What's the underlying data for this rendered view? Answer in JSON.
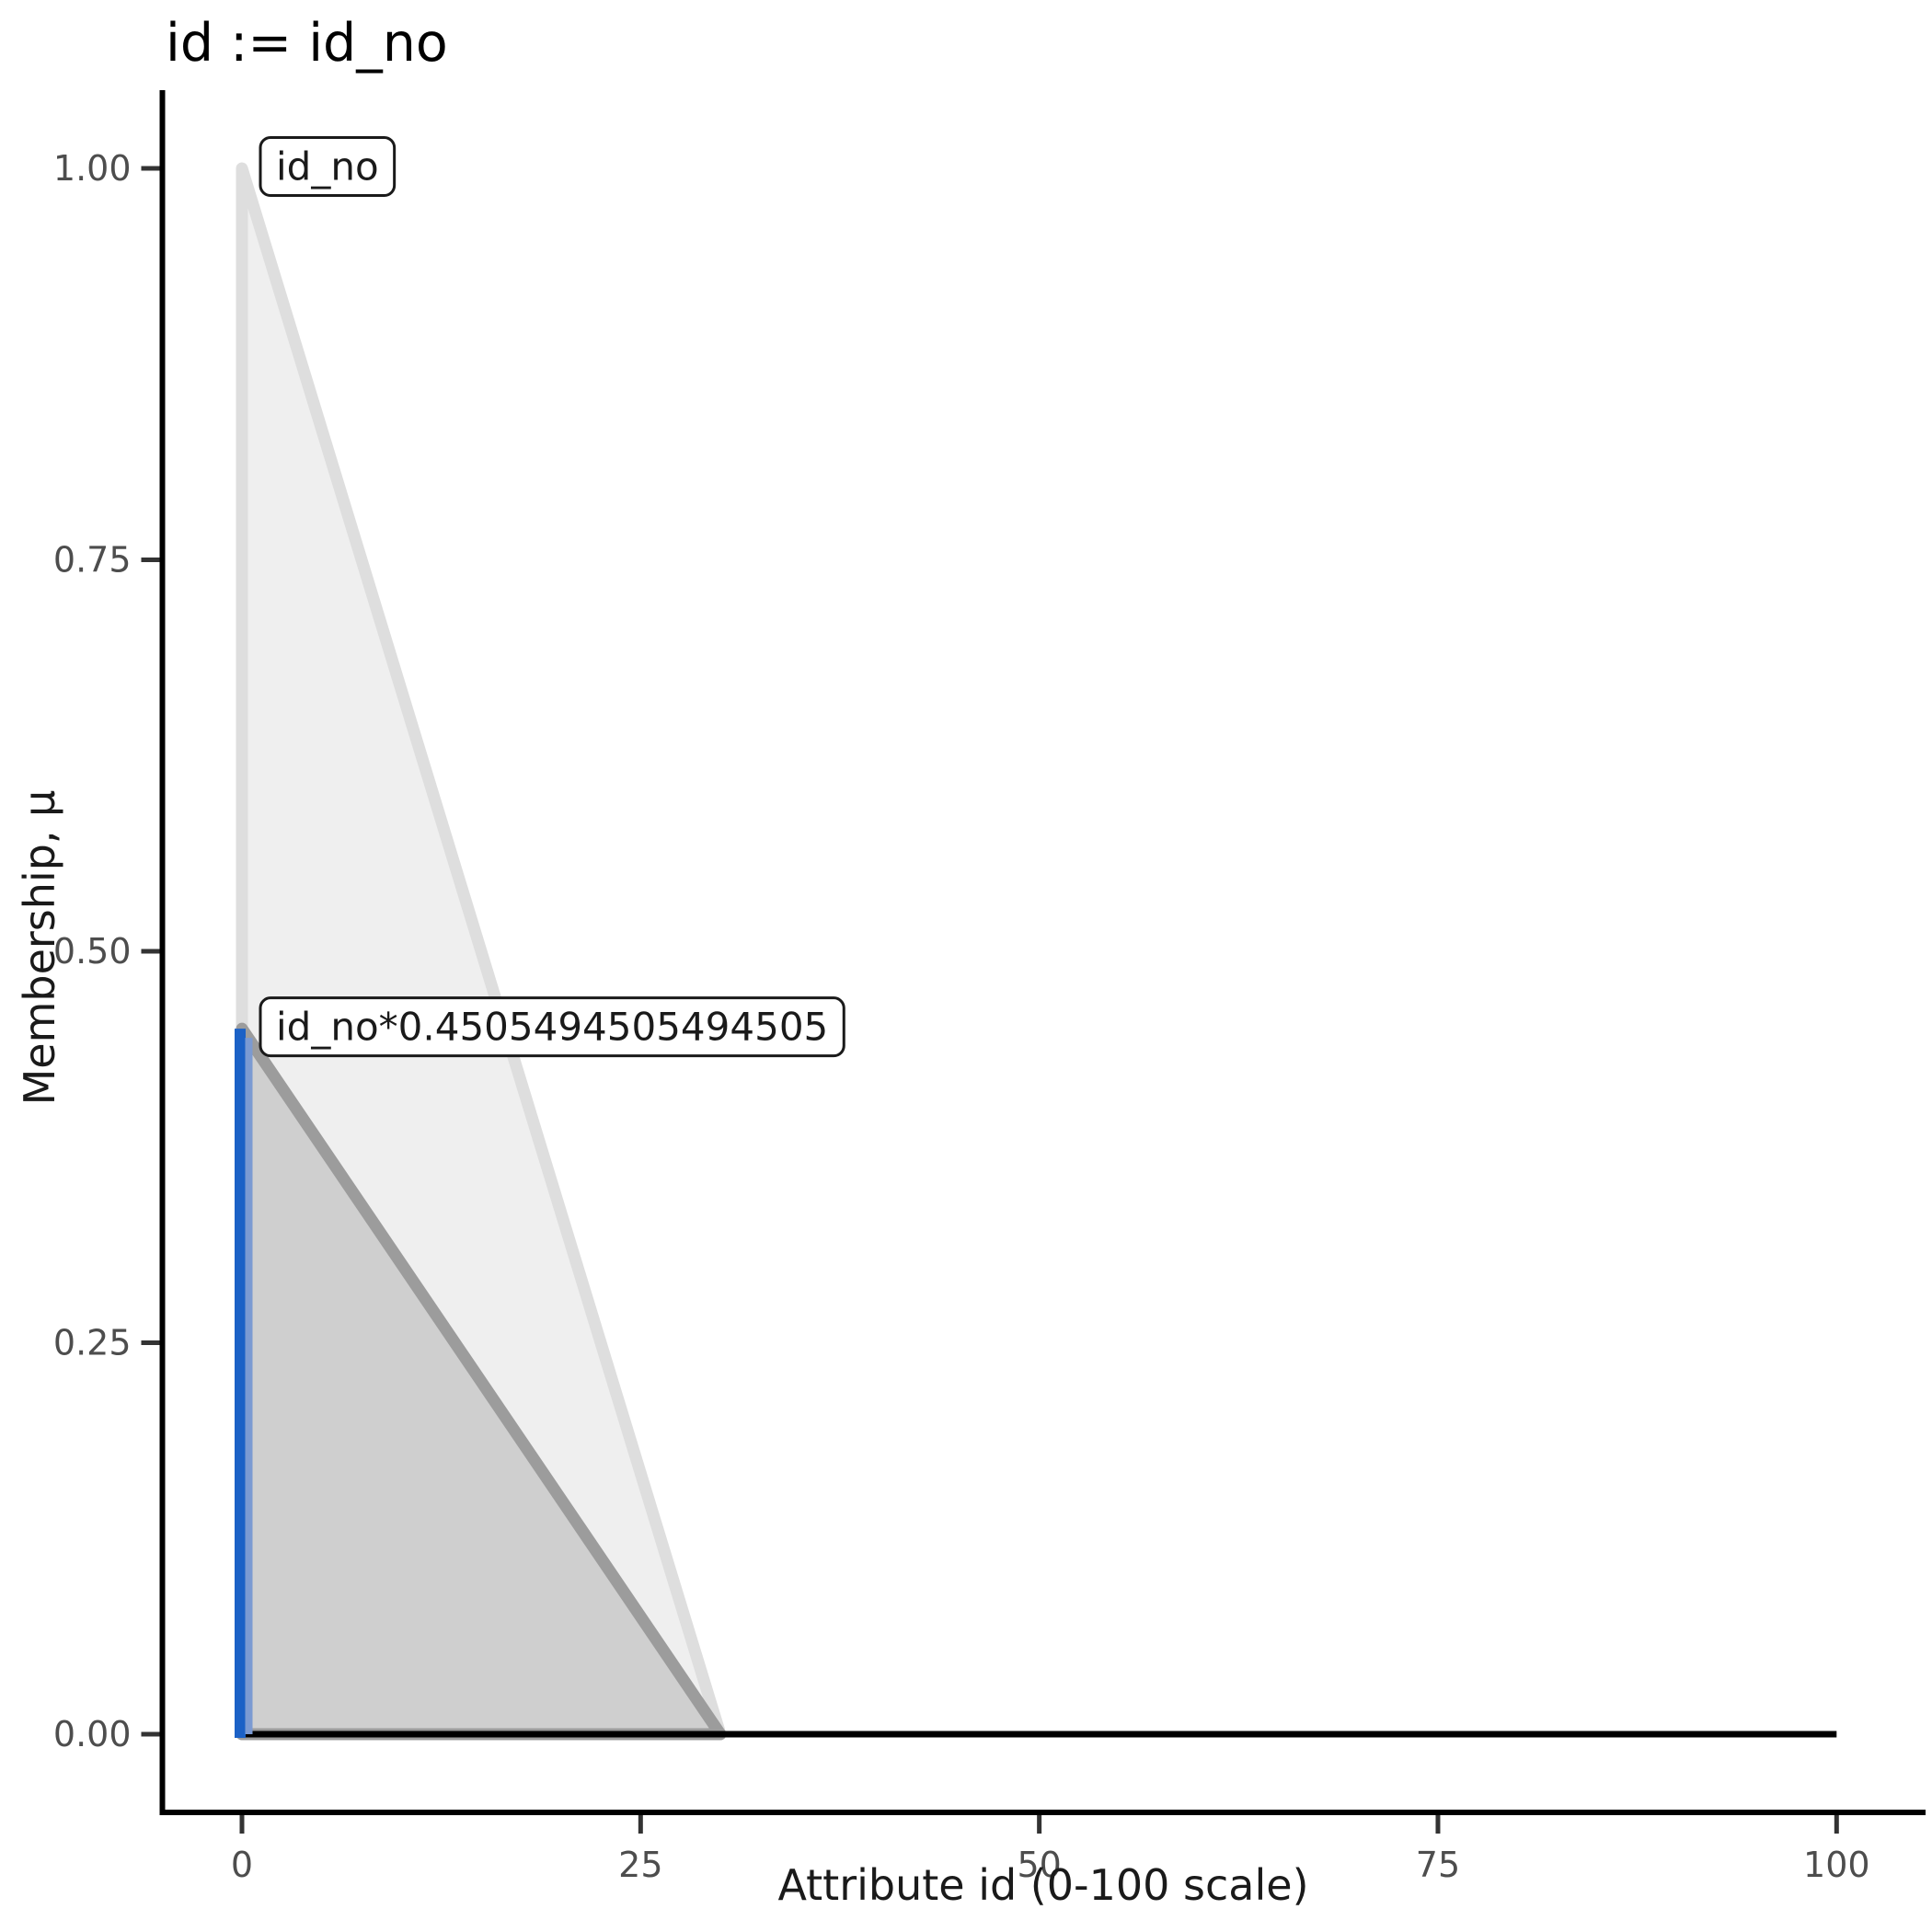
{
  "chart_data": {
    "type": "area",
    "title": "id := id_no",
    "xlabel": "Attribute id (0-100 scale)",
    "ylabel": "Membership, μ",
    "xlim": [
      0,
      100
    ],
    "ylim": [
      0,
      1
    ],
    "x_ticks": [
      0,
      25,
      50,
      75,
      100
    ],
    "x_tick_labels": [
      "0",
      "25",
      "50",
      "75",
      "100"
    ],
    "y_ticks": [
      0,
      0.25,
      0.5,
      0.75,
      1
    ],
    "y_tick_labels": [
      "0.00",
      "0.25",
      "0.50",
      "0.75",
      "1.00"
    ],
    "grid": false,
    "legend_position": "none",
    "scale_factor": 0.4505494505494505,
    "series": [
      {
        "name": "id_no",
        "points": [
          [
            0,
            1
          ],
          [
            30,
            0
          ],
          [
            0,
            0
          ]
        ],
        "line_color": "#dedede",
        "fill_color": "#efefef",
        "label_box": {
          "text": "id_no",
          "anchor_x": 0,
          "anchor_y": 1.0
        }
      },
      {
        "name": "id_no_scaled",
        "points": [
          [
            0,
            0.4505494505494505
          ],
          [
            30,
            0
          ],
          [
            0,
            0
          ]
        ],
        "line_color": "#9c9c9c",
        "fill_color": "#cfcfcf",
        "label_box": {
          "text": "id_no*0.4505494505494505",
          "anchor_x": 0,
          "anchor_y": 0.4505494505494505
        }
      }
    ],
    "baseline": {
      "points": [
        [
          0,
          0
        ],
        [
          100,
          0
        ]
      ],
      "color": "#000000"
    },
    "input_marker": {
      "x": 0,
      "y_bottom": 0,
      "y_top": 0.4505494505494505,
      "color": "#1b61c6",
      "echo_color": "#7b9ad2"
    },
    "colors": {
      "axis_line": "#000000",
      "tick_mark": "#333333",
      "tick_label": "#4d4d4d",
      "label_box_border": "#1a1a1a",
      "label_box_fill": "#ffffff",
      "label_box_text": "#1a1a1a",
      "background": "#ffffff"
    }
  }
}
